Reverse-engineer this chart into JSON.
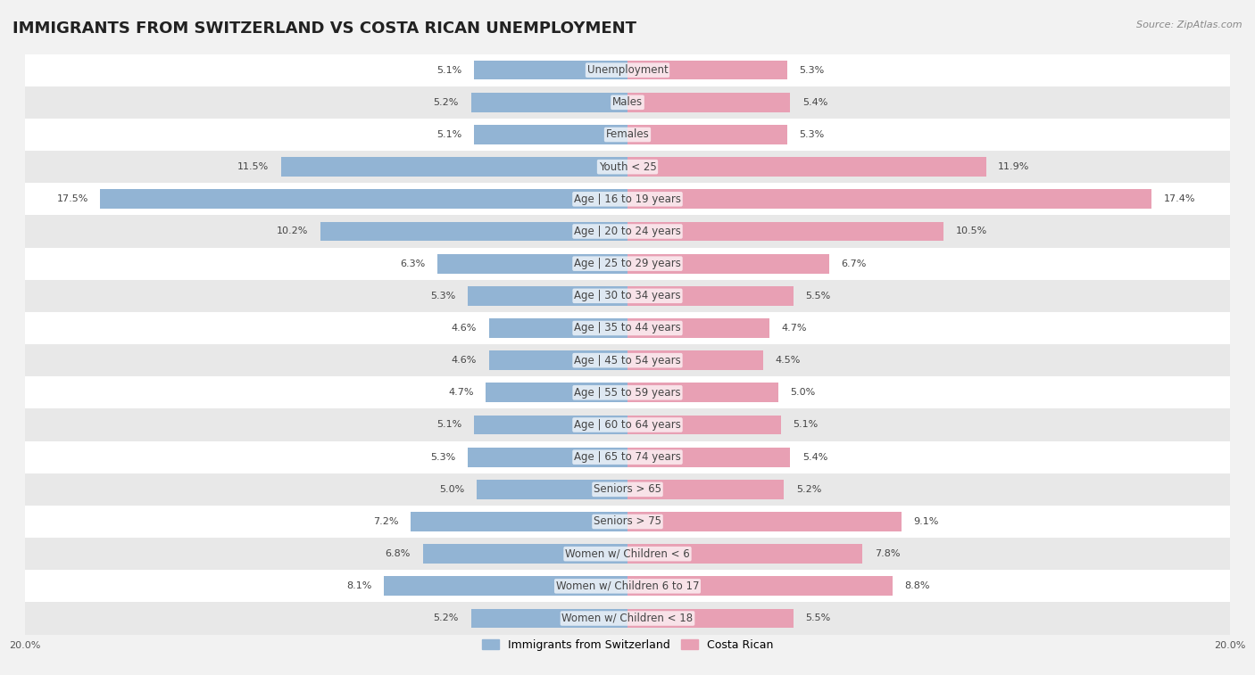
{
  "title": "IMMIGRANTS FROM SWITZERLAND VS COSTA RICAN UNEMPLOYMENT",
  "source": "Source: ZipAtlas.com",
  "categories": [
    "Unemployment",
    "Males",
    "Females",
    "Youth < 25",
    "Age | 16 to 19 years",
    "Age | 20 to 24 years",
    "Age | 25 to 29 years",
    "Age | 30 to 34 years",
    "Age | 35 to 44 years",
    "Age | 45 to 54 years",
    "Age | 55 to 59 years",
    "Age | 60 to 64 years",
    "Age | 65 to 74 years",
    "Seniors > 65",
    "Seniors > 75",
    "Women w/ Children < 6",
    "Women w/ Children 6 to 17",
    "Women w/ Children < 18"
  ],
  "swiss_values": [
    5.1,
    5.2,
    5.1,
    11.5,
    17.5,
    10.2,
    6.3,
    5.3,
    4.6,
    4.6,
    4.7,
    5.1,
    5.3,
    5.0,
    7.2,
    6.8,
    8.1,
    5.2
  ],
  "cr_values": [
    5.3,
    5.4,
    5.3,
    11.9,
    17.4,
    10.5,
    6.7,
    5.5,
    4.7,
    4.5,
    5.0,
    5.1,
    5.4,
    5.2,
    9.1,
    7.8,
    8.8,
    5.5
  ],
  "swiss_color": "#92b4d4",
  "cr_color": "#e8a0b4",
  "swiss_label": "Immigrants from Switzerland",
  "cr_label": "Costa Rican",
  "x_max": 20.0,
  "background_color": "#f2f2f2",
  "row_color_light": "#ffffff",
  "row_color_dark": "#e8e8e8",
  "title_fontsize": 13,
  "label_fontsize": 8.5,
  "value_fontsize": 8.0,
  "legend_fontsize": 9
}
